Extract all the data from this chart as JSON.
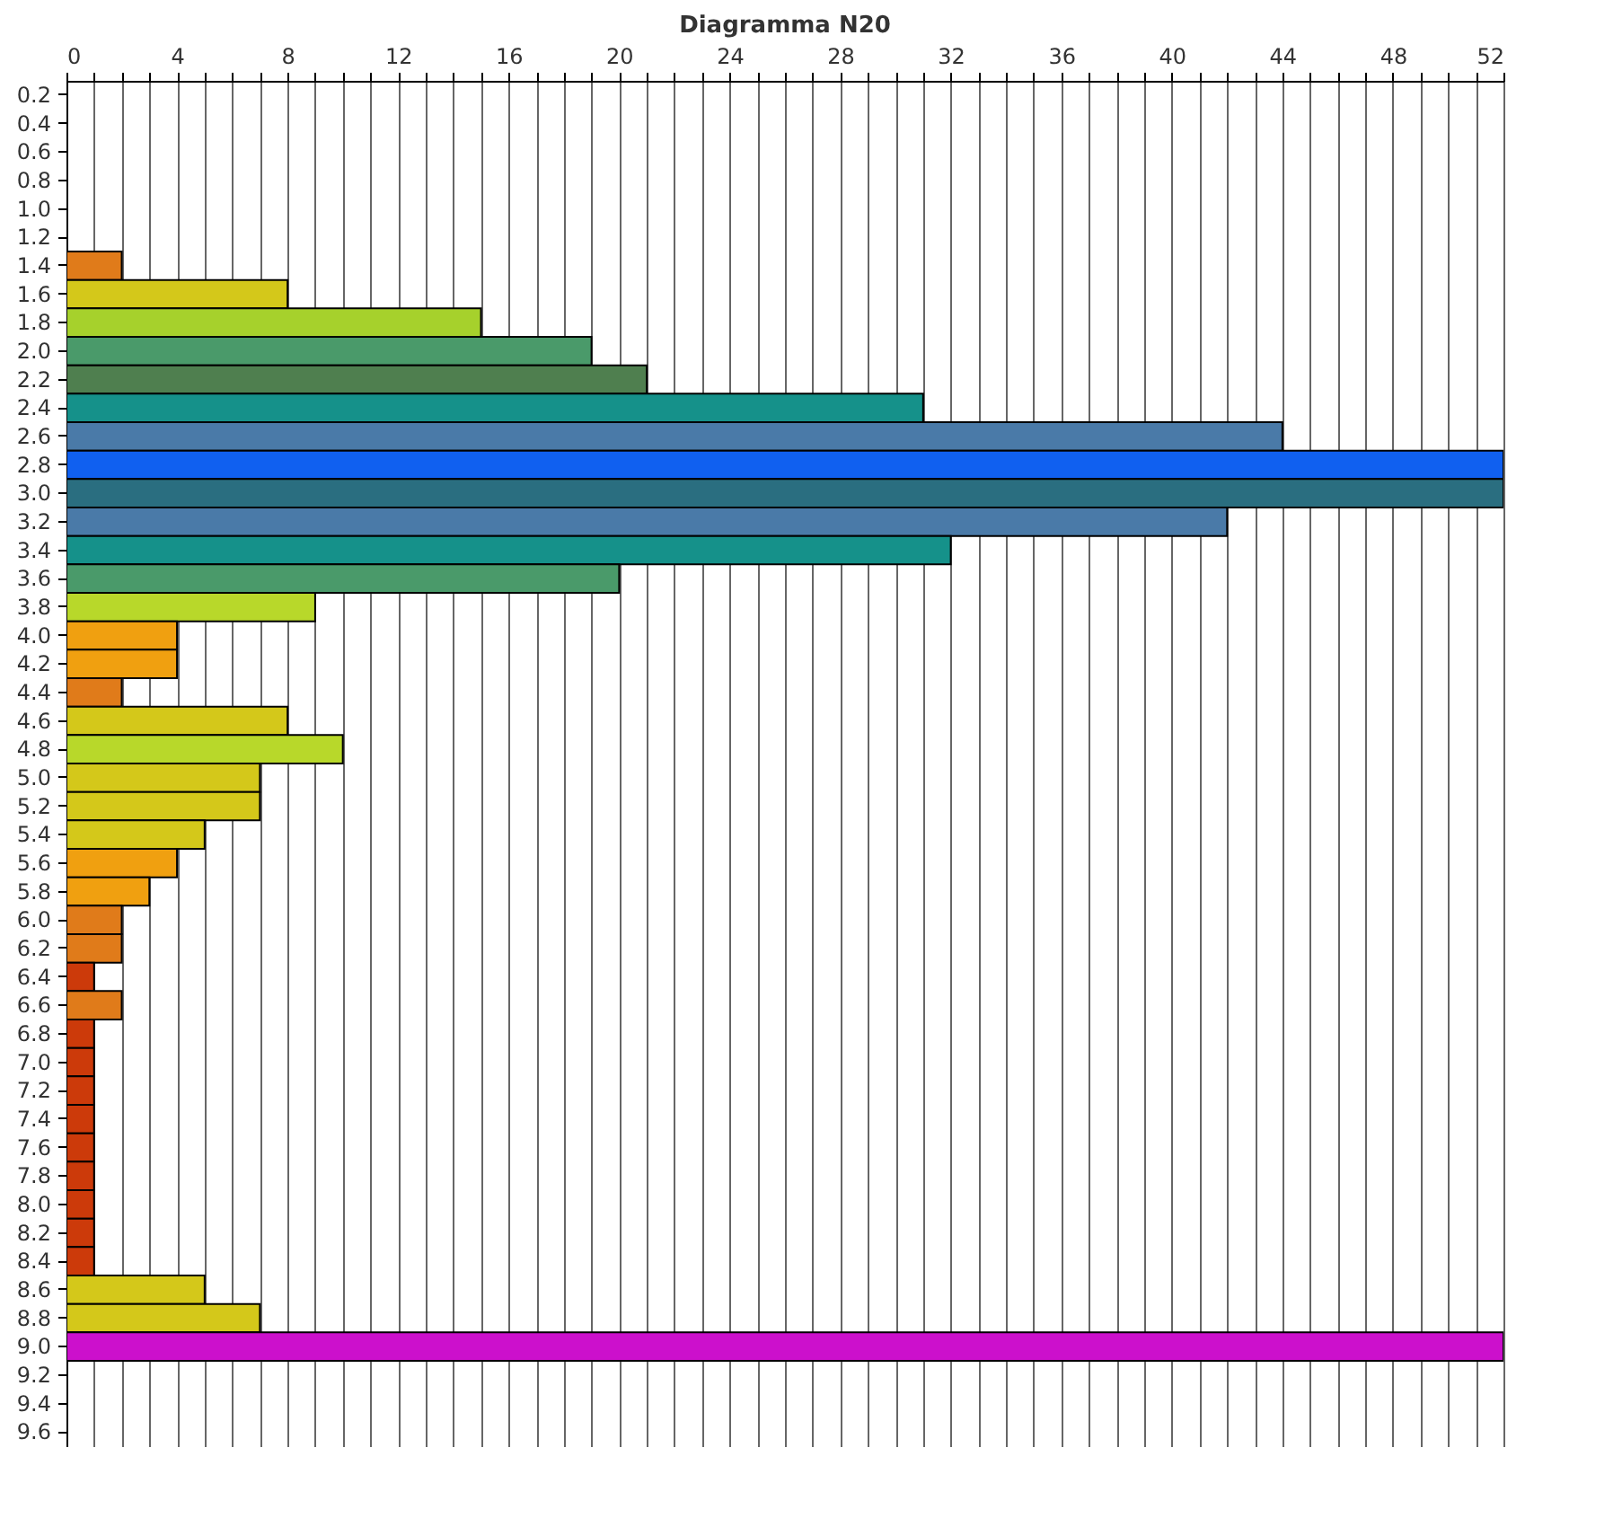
{
  "chart_data": {
    "type": "bar",
    "orientation": "horizontal",
    "title": "Diagramma N20",
    "categories": [
      "0.2",
      "0.4",
      "0.6",
      "0.8",
      "1.0",
      "1.2",
      "1.4",
      "1.6",
      "1.8",
      "2.0",
      "2.2",
      "2.4",
      "2.6",
      "2.8",
      "3.0",
      "3.2",
      "3.4",
      "3.6",
      "3.8",
      "4.0",
      "4.2",
      "4.4",
      "4.6",
      "4.8",
      "5.0",
      "5.2",
      "5.4",
      "5.6",
      "5.8",
      "6.0",
      "6.2",
      "6.4",
      "6.6",
      "6.8",
      "7.0",
      "7.2",
      "7.4",
      "7.6",
      "7.8",
      "8.0",
      "8.2",
      "8.4",
      "8.6",
      "8.8",
      "9.0",
      "9.2",
      "9.4",
      "9.6"
    ],
    "values": [
      null,
      null,
      null,
      null,
      null,
      null,
      2,
      8,
      15,
      19,
      21,
      31,
      44,
      52,
      52,
      42,
      32,
      20,
      9,
      4,
      4,
      2,
      8,
      10,
      7,
      7,
      5,
      4,
      3,
      2,
      2,
      1,
      2,
      1,
      1,
      1,
      1,
      1,
      1,
      1,
      1,
      1,
      5,
      7,
      52,
      null,
      null,
      null
    ],
    "colors": [
      null,
      null,
      null,
      null,
      null,
      null,
      "#e07b1a",
      "#d4c81a",
      "#a6d12c",
      "#4a9a6a",
      "#4f7f4f",
      "#15918a",
      "#4a7aa8",
      "#1060f0",
      "#2a6e80",
      "#4a7aa8",
      "#15918a",
      "#4a9a6a",
      "#b8d82a",
      "#f0a010",
      "#f0a010",
      "#e07b1a",
      "#d4c81a",
      "#b8d82a",
      "#d4c81a",
      "#d4c81a",
      "#d4c81a",
      "#f0a010",
      "#f0a010",
      "#e07b1a",
      "#e07b1a",
      "#cc3a0a",
      "#e07b1a",
      "#cc3a0a",
      "#cc3a0a",
      "#cc3a0a",
      "#cc3a0a",
      "#cc3a0a",
      "#cc3a0a",
      "#cc3a0a",
      "#cc3a0a",
      "#cc3a0a",
      "#d4c81a",
      "#d4c81a",
      "#cc10cc",
      null,
      null,
      null
    ],
    "xlim": [
      0,
      52
    ],
    "xticks": [
      0,
      {
        "value": 1,
        "label": null
      },
      {
        "value": 2,
        "label": null
      },
      {
        "value": 3,
        "label": null
      },
      4,
      {
        "value": 5,
        "label": null
      },
      {
        "value": 6,
        "label": null
      },
      {
        "value": 7,
        "label": null
      },
      8,
      {
        "value": 9,
        "label": null
      },
      {
        "value": 10,
        "label": null
      },
      {
        "value": 11,
        "label": null
      },
      12,
      {
        "value": 13,
        "label": null
      },
      {
        "value": 14,
        "label": null
      },
      {
        "value": 15,
        "label": null
      },
      16,
      {
        "value": 17,
        "label": null
      },
      {
        "value": 18,
        "label": null
      },
      {
        "value": 19,
        "label": null
      },
      20,
      {
        "value": 21,
        "label": null
      },
      {
        "value": 22,
        "label": null
      },
      {
        "value": 23,
        "label": null
      },
      24,
      {
        "value": 25,
        "label": null
      },
      {
        "value": 26,
        "label": null
      },
      {
        "value": 27,
        "label": null
      },
      28,
      {
        "value": 29,
        "label": null
      },
      {
        "value": 30,
        "label": null
      },
      {
        "value": 31,
        "label": null
      },
      32,
      {
        "value": 33,
        "label": null
      },
      {
        "value": 34,
        "label": null
      },
      {
        "value": 35,
        "label": null
      },
      36,
      {
        "value": 37,
        "label": null
      },
      {
        "value": 38,
        "label": null
      },
      {
        "value": 39,
        "label": null
      },
      40,
      {
        "value": 41,
        "label": null
      },
      {
        "value": 42,
        "label": null
      },
      {
        "value": 43,
        "label": null
      },
      44,
      {
        "value": 45,
        "label": null
      },
      {
        "value": 46,
        "label": null
      },
      {
        "value": 47,
        "label": null
      },
      48,
      {
        "value": 49,
        "label": null
      },
      {
        "value": 50,
        "label": null
      },
      {
        "value": 51,
        "label": null
      },
      52
    ],
    "grid": "x"
  }
}
